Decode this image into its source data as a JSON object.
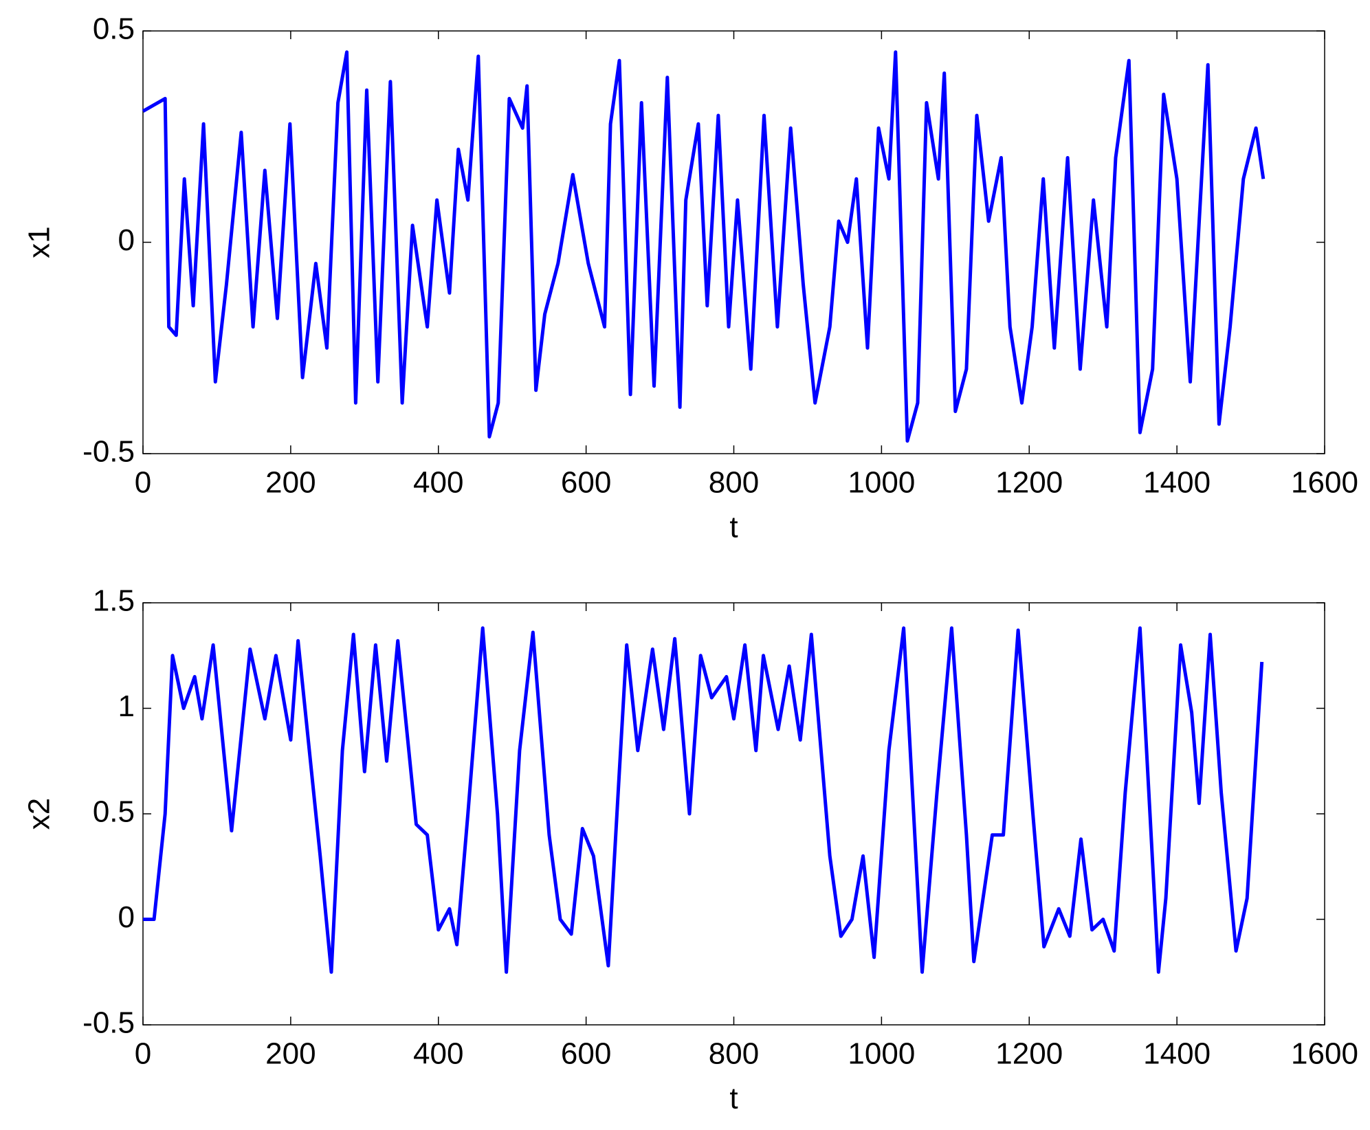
{
  "chart_data": [
    {
      "type": "line",
      "xlabel": "t",
      "ylabel": "x1",
      "color": "#0000ff",
      "x": [
        0,
        30,
        35,
        45,
        56,
        68,
        82,
        98,
        113,
        133,
        149,
        165,
        182,
        199,
        216,
        234,
        249,
        264,
        276,
        288,
        303,
        318,
        335,
        351,
        365,
        385,
        398,
        415,
        427,
        440,
        454,
        469,
        481,
        496,
        514,
        520,
        532,
        544,
        562,
        582,
        603,
        625,
        633,
        645,
        660,
        675,
        692,
        710,
        727,
        735,
        752,
        764,
        779,
        793,
        805,
        823,
        841,
        859,
        877,
        894,
        910,
        930,
        942,
        954,
        966,
        981,
        996,
        1010,
        1019,
        1035,
        1049,
        1061,
        1077,
        1085,
        1100,
        1115,
        1129,
        1145,
        1162,
        1174,
        1190,
        1204,
        1219,
        1234,
        1252,
        1269,
        1287,
        1305,
        1317,
        1335,
        1350,
        1367,
        1382,
        1400,
        1418,
        1442,
        1457,
        1472,
        1490,
        1507,
        1517
      ],
      "values": [
        0.31,
        0.34,
        -0.2,
        -0.22,
        0.15,
        -0.15,
        0.28,
        -0.33,
        -0.1,
        0.26,
        -0.2,
        0.17,
        -0.18,
        0.28,
        -0.32,
        -0.05,
        -0.25,
        0.33,
        0.45,
        -0.38,
        0.36,
        -0.33,
        0.38,
        -0.38,
        0.04,
        -0.2,
        0.1,
        -0.12,
        0.22,
        0.1,
        0.44,
        -0.46,
        -0.38,
        0.34,
        0.27,
        0.37,
        -0.35,
        -0.17,
        -0.05,
        0.16,
        -0.05,
        -0.2,
        0.28,
        0.43,
        -0.36,
        0.33,
        -0.34,
        0.39,
        -0.39,
        0.1,
        0.28,
        -0.15,
        0.3,
        -0.2,
        0.1,
        -0.3,
        0.3,
        -0.2,
        0.27,
        -0.1,
        -0.38,
        -0.2,
        0.05,
        0.0,
        0.15,
        -0.25,
        0.27,
        0.15,
        0.45,
        -0.47,
        -0.38,
        0.33,
        0.15,
        0.4,
        -0.4,
        -0.3,
        0.3,
        0.05,
        0.2,
        -0.2,
        -0.38,
        -0.2,
        0.15,
        -0.25,
        0.2,
        -0.3,
        0.1,
        -0.2,
        0.2,
        0.43,
        -0.45,
        -0.3,
        0.35,
        0.15,
        -0.33,
        0.42,
        -0.43,
        -0.2,
        0.15,
        0.27,
        0.15
      ],
      "xlim": [
        0,
        1600
      ],
      "ylim": [
        -0.5,
        0.5
      ],
      "xticks": [
        0,
        200,
        400,
        600,
        800,
        1000,
        1200,
        1400,
        1600
      ],
      "yticks": [
        -0.5,
        0,
        0.5
      ]
    },
    {
      "type": "line",
      "xlabel": "t",
      "ylabel": "x2",
      "color": "#0000ff",
      "x": [
        0,
        15,
        30,
        40,
        55,
        70,
        80,
        95,
        120,
        145,
        165,
        180,
        200,
        210,
        240,
        255,
        270,
        285,
        300,
        315,
        330,
        345,
        370,
        385,
        400,
        415,
        425,
        440,
        460,
        480,
        492,
        510,
        528,
        550,
        565,
        580,
        595,
        610,
        630,
        645,
        655,
        670,
        690,
        705,
        720,
        740,
        755,
        770,
        790,
        800,
        815,
        830,
        840,
        860,
        875,
        890,
        905,
        930,
        945,
        960,
        975,
        990,
        1010,
        1030,
        1055,
        1075,
        1095,
        1115,
        1125,
        1150,
        1165,
        1185,
        1205,
        1220,
        1240,
        1255,
        1270,
        1285,
        1300,
        1315,
        1330,
        1350,
        1375,
        1385,
        1405,
        1420,
        1430,
        1445,
        1460,
        1480,
        1495,
        1515
      ],
      "values": [
        0,
        0,
        0.5,
        1.25,
        1.0,
        1.15,
        0.95,
        1.3,
        0.42,
        1.28,
        0.95,
        1.25,
        0.85,
        1.32,
        0.3,
        -0.25,
        0.8,
        1.35,
        0.7,
        1.3,
        0.75,
        1.32,
        0.45,
        0.4,
        -0.05,
        0.05,
        -0.12,
        0.5,
        1.38,
        0.5,
        -0.25,
        0.8,
        1.36,
        0.4,
        0.0,
        -0.07,
        0.43,
        0.3,
        -0.22,
        0.7,
        1.3,
        0.8,
        1.28,
        0.9,
        1.33,
        0.5,
        1.25,
        1.05,
        1.15,
        0.95,
        1.3,
        0.8,
        1.25,
        0.9,
        1.2,
        0.85,
        1.35,
        0.3,
        -0.08,
        0.0,
        0.3,
        -0.18,
        0.8,
        1.38,
        -0.25,
        0.6,
        1.38,
        0.4,
        -0.2,
        0.4,
        0.4,
        1.37,
        0.5,
        -0.13,
        0.05,
        -0.08,
        0.38,
        -0.05,
        0.0,
        -0.15,
        0.6,
        1.38,
        -0.25,
        0.1,
        1.3,
        0.98,
        0.55,
        1.35,
        0.6,
        -0.15,
        0.1,
        1.22
      ],
      "xlim": [
        0,
        1600
      ],
      "ylim": [
        -0.5,
        1.5
      ],
      "xticks": [
        0,
        200,
        400,
        600,
        800,
        1000,
        1200,
        1400,
        1600
      ],
      "yticks": [
        -0.5,
        0,
        0.5,
        1,
        1.5
      ]
    }
  ]
}
